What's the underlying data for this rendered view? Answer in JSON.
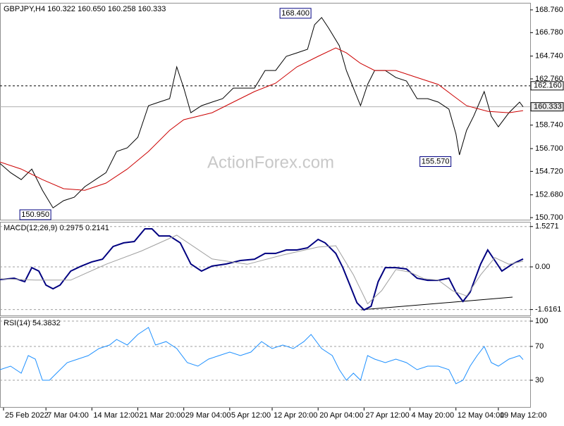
{
  "chart_data": [
    {
      "type": "line",
      "title": "GBPJPY,H4  160.322 160.650 160.258 160.333",
      "watermark": "ActionForex.com",
      "xlim": [
        0,
        150
      ],
      "xticks": [
        {
          "value": 1,
          "label": "25 Feb 2022"
        },
        {
          "value": 13,
          "label": "7 Mar 04:00"
        },
        {
          "value": 26,
          "label": "14 Mar 12:00"
        },
        {
          "value": 39,
          "label": "21 Mar 20:00"
        },
        {
          "value": 52,
          "label": "29 Mar 04:00"
        },
        {
          "value": 65,
          "label": "5 Apr 12:00"
        },
        {
          "value": 77,
          "label": "12 Apr 20:00"
        },
        {
          "value": 90,
          "label": "20 Apr 04:00"
        },
        {
          "value": 103,
          "label": "27 Apr 12:00"
        },
        {
          "value": 116,
          "label": "4 May 20:00"
        },
        {
          "value": 129,
          "label": "12 May 04:00"
        },
        {
          "value": 141,
          "label": "19 May 12:00"
        }
      ],
      "ylim": [
        150.52,
        169.31
      ],
      "yticks": [
        {
          "value": 168.76,
          "label": "168.760"
        },
        {
          "value": 166.78,
          "label": "166.780"
        },
        {
          "value": 164.74,
          "label": "164.740"
        },
        {
          "value": 162.76,
          "label": "162.760"
        },
        {
          "value": 158.74,
          "label": "158.740"
        },
        {
          "value": 156.7,
          "label": "156.700"
        },
        {
          "value": 154.72,
          "label": "154.720"
        },
        {
          "value": 152.68,
          "label": "152.680"
        },
        {
          "value": 150.7,
          "label": "150.700"
        }
      ],
      "series": [
        {
          "color": "#000000",
          "x": [
            0,
            3,
            6,
            9,
            12,
            15,
            18,
            21,
            24,
            27,
            30,
            33,
            36,
            39,
            42,
            45,
            48,
            50,
            52,
            54,
            57,
            60,
            63,
            66,
            69,
            72,
            75,
            78,
            81,
            84,
            87,
            89,
            91,
            93,
            96,
            98,
            100,
            102,
            104,
            106,
            109,
            112,
            115,
            118,
            121,
            124,
            127,
            129,
            130,
            132,
            134,
            137,
            139,
            141,
            144,
            147,
            148
          ],
          "values": [
            155.41,
            154.61,
            154.0,
            154.92,
            153.08,
            151.55,
            152.17,
            152.47,
            153.39,
            154.0,
            154.61,
            156.45,
            156.76,
            157.68,
            160.43,
            160.74,
            161.04,
            163.8,
            161.96,
            159.82,
            160.43,
            160.74,
            161.04,
            161.96,
            161.96,
            161.96,
            163.49,
            163.49,
            164.72,
            165.02,
            165.33,
            167.47,
            168.09,
            167.17,
            165.64,
            163.49,
            161.96,
            160.43,
            162.27,
            163.49,
            163.49,
            162.88,
            162.58,
            161.04,
            161.04,
            160.74,
            160.13,
            157.98,
            156.15,
            158.29,
            159.51,
            161.66,
            159.51,
            158.59,
            159.82,
            160.74,
            160.333
          ]
        },
        {
          "color": "#cc0000",
          "x": [
            0,
            6,
            12,
            18,
            24,
            30,
            36,
            42,
            48,
            52,
            56,
            60,
            66,
            72,
            78,
            84,
            90,
            95,
            98,
            102,
            106,
            112,
            118,
            124,
            128,
            132,
            138,
            144,
            148
          ],
          "values": [
            155.53,
            154.92,
            154.0,
            153.21,
            153.08,
            153.7,
            154.92,
            156.45,
            158.29,
            159.21,
            159.51,
            159.82,
            160.74,
            161.66,
            162.39,
            163.8,
            164.72,
            165.45,
            165.02,
            164.11,
            163.49,
            163.49,
            162.88,
            162.27,
            161.35,
            160.43,
            159.94,
            159.82,
            160.0
          ]
        }
      ],
      "hlines": [
        {
          "value": 162.16,
          "label": "162.160"
        },
        {
          "value": 160.333,
          "label": "160.333"
        }
      ],
      "annotations": [
        {
          "label": "168.400",
          "x": 83.6,
          "y": 168.4
        },
        {
          "label": "150.950",
          "x": 10,
          "y": 150.95
        },
        {
          "label": "155.570",
          "x": 123.2,
          "y": 155.57
        }
      ]
    },
    {
      "type": "line",
      "title": "MACD(12,26,9) 0.2975 0.2141",
      "xlim": [
        0,
        150
      ],
      "ylim": [
        -1.84,
        1.68
      ],
      "yticks": [
        1.5271,
        {
          "value": 0,
          "label": "0.00"
        },
        -1.6161
      ],
      "series": [
        {
          "color": "#000080",
          "x": [
            0,
            4,
            7,
            9,
            11,
            13,
            15,
            17,
            20,
            23,
            26,
            29,
            32,
            35,
            38,
            41,
            43,
            45,
            48,
            51,
            54,
            57,
            60,
            64,
            68,
            72,
            75,
            78,
            81,
            84,
            87,
            90,
            92,
            95,
            97,
            99,
            101,
            103,
            105,
            107,
            109,
            112,
            115,
            118,
            121,
            124,
            127,
            129,
            131,
            133,
            136,
            138,
            140,
            142,
            145,
            148
          ],
          "values": [
            -0.48,
            -0.43,
            -0.56,
            -0.03,
            -0.16,
            -0.69,
            -0.83,
            -0.69,
            -0.16,
            0.03,
            0.19,
            0.29,
            0.77,
            0.91,
            0.96,
            1.44,
            1.44,
            1.17,
            1.17,
            0.91,
            0.11,
            -0.16,
            0.03,
            0.11,
            0.24,
            0.29,
            0.51,
            0.51,
            0.64,
            0.64,
            0.72,
            1.04,
            0.91,
            0.51,
            -0.03,
            -0.69,
            -1.36,
            -1.63,
            -1.49,
            -0.56,
            -0.03,
            -0.03,
            -0.08,
            -0.43,
            -0.51,
            -0.51,
            -0.43,
            -0.96,
            -1.31,
            -0.96,
            0.11,
            0.64,
            0.24,
            -0.16,
            0.11,
            0.2975
          ]
        },
        {
          "color": "#a0a0a0",
          "x": [
            0,
            10,
            20,
            30,
            40,
            50,
            60,
            70,
            80,
            90,
            95,
            100,
            104,
            108,
            112,
            116,
            120,
            124,
            128,
            132,
            136,
            140,
            144,
            148
          ],
          "values": [
            -0.45,
            -0.5,
            -0.5,
            0.1,
            0.6,
            1.2,
            0.3,
            0.1,
            0.45,
            0.75,
            0.8,
            -0.3,
            -1.4,
            -0.9,
            -0.1,
            -0.2,
            -0.45,
            -0.5,
            -0.9,
            -1.1,
            -0.3,
            0.35,
            0.1,
            0.2141
          ]
        }
      ]
    },
    {
      "type": "line",
      "title": "RSI(14) 54.3832",
      "xlim": [
        0,
        150
      ],
      "ylim": [
        -1.7,
        104.2
      ],
      "yticks": [
        100,
        70,
        30
      ],
      "series": [
        {
          "color": "#1e90ff",
          "x": [
            0,
            3,
            6,
            8,
            10,
            12,
            14,
            16,
            19,
            22,
            25,
            28,
            31,
            33,
            36,
            39,
            42,
            44,
            47,
            50,
            53,
            56,
            59,
            62,
            65,
            68,
            71,
            74,
            77,
            80,
            83,
            86,
            88,
            91,
            94,
            96,
            98,
            100,
            102,
            104,
            106,
            109,
            112,
            115,
            118,
            121,
            124,
            127,
            129,
            131,
            133,
            135,
            137,
            139,
            141,
            144,
            147,
            148
          ],
          "values": [
            42.5,
            46.7,
            38.3,
            59.2,
            55,
            30,
            30,
            38.3,
            50.8,
            55,
            59.2,
            67.5,
            71.7,
            78.3,
            71.7,
            84.2,
            92.5,
            71.7,
            75.8,
            67.5,
            50.8,
            46.7,
            55,
            59.2,
            63.3,
            59.2,
            63.3,
            75.8,
            67.5,
            71.7,
            67.5,
            75.8,
            84.2,
            67.5,
            59.2,
            42.5,
            30,
            38.3,
            30,
            59.2,
            55,
            50.8,
            55,
            50.8,
            42.5,
            46.7,
            46.7,
            42.5,
            25.8,
            30,
            46.7,
            59.2,
            70,
            50.8,
            46.7,
            55,
            59.2,
            54.3832
          ]
        }
      ]
    }
  ]
}
